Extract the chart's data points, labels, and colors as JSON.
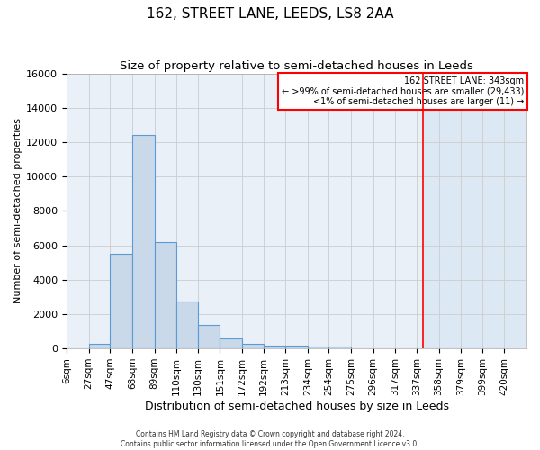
{
  "title": "162, STREET LANE, LEEDS, LS8 2AA",
  "subtitle": "Size of property relative to semi-detached houses in Leeds",
  "xlabel": "Distribution of semi-detached houses by size in Leeds",
  "ylabel": "Number of semi-detached properties",
  "footer": "Contains HM Land Registry data © Crown copyright and database right 2024.\nContains public sector information licensed under the Open Government Licence v3.0.",
  "bin_labels": [
    "6sqm",
    "27sqm",
    "47sqm",
    "68sqm",
    "89sqm",
    "110sqm",
    "130sqm",
    "151sqm",
    "172sqm",
    "192sqm",
    "213sqm",
    "234sqm",
    "254sqm",
    "275sqm",
    "296sqm",
    "317sqm",
    "337sqm",
    "358sqm",
    "379sqm",
    "399sqm",
    "420sqm"
  ],
  "bin_edges": [
    6,
    27,
    47,
    68,
    89,
    110,
    130,
    151,
    172,
    192,
    213,
    234,
    254,
    275,
    296,
    317,
    337,
    358,
    379,
    399,
    420
  ],
  "bar_heights": [
    0,
    270,
    5500,
    12400,
    6200,
    2750,
    1350,
    600,
    280,
    180,
    150,
    120,
    110,
    0,
    0,
    0,
    0,
    0,
    0,
    0
  ],
  "bar_color": "#c9d9ea",
  "bar_edge_color": "#5b9bd5",
  "highlight_color": "#dce9f5",
  "red_line_x": 343,
  "ylim": [
    0,
    16000
  ],
  "yticks": [
    0,
    2000,
    4000,
    6000,
    8000,
    10000,
    12000,
    14000,
    16000
  ],
  "annotation_title": "162 STREET LANE: 343sqm",
  "annotation_line1": "← >99% of semi-detached houses are smaller (29,433)",
  "annotation_line2": "<1% of semi-detached houses are larger (11) →",
  "grid_color": "#cccccc",
  "bg_color": "#eaf0f8",
  "title_fontsize": 11,
  "subtitle_fontsize": 9.5,
  "xlabel_fontsize": 9,
  "ylabel_fontsize": 8,
  "tick_fontsize": 7.5
}
